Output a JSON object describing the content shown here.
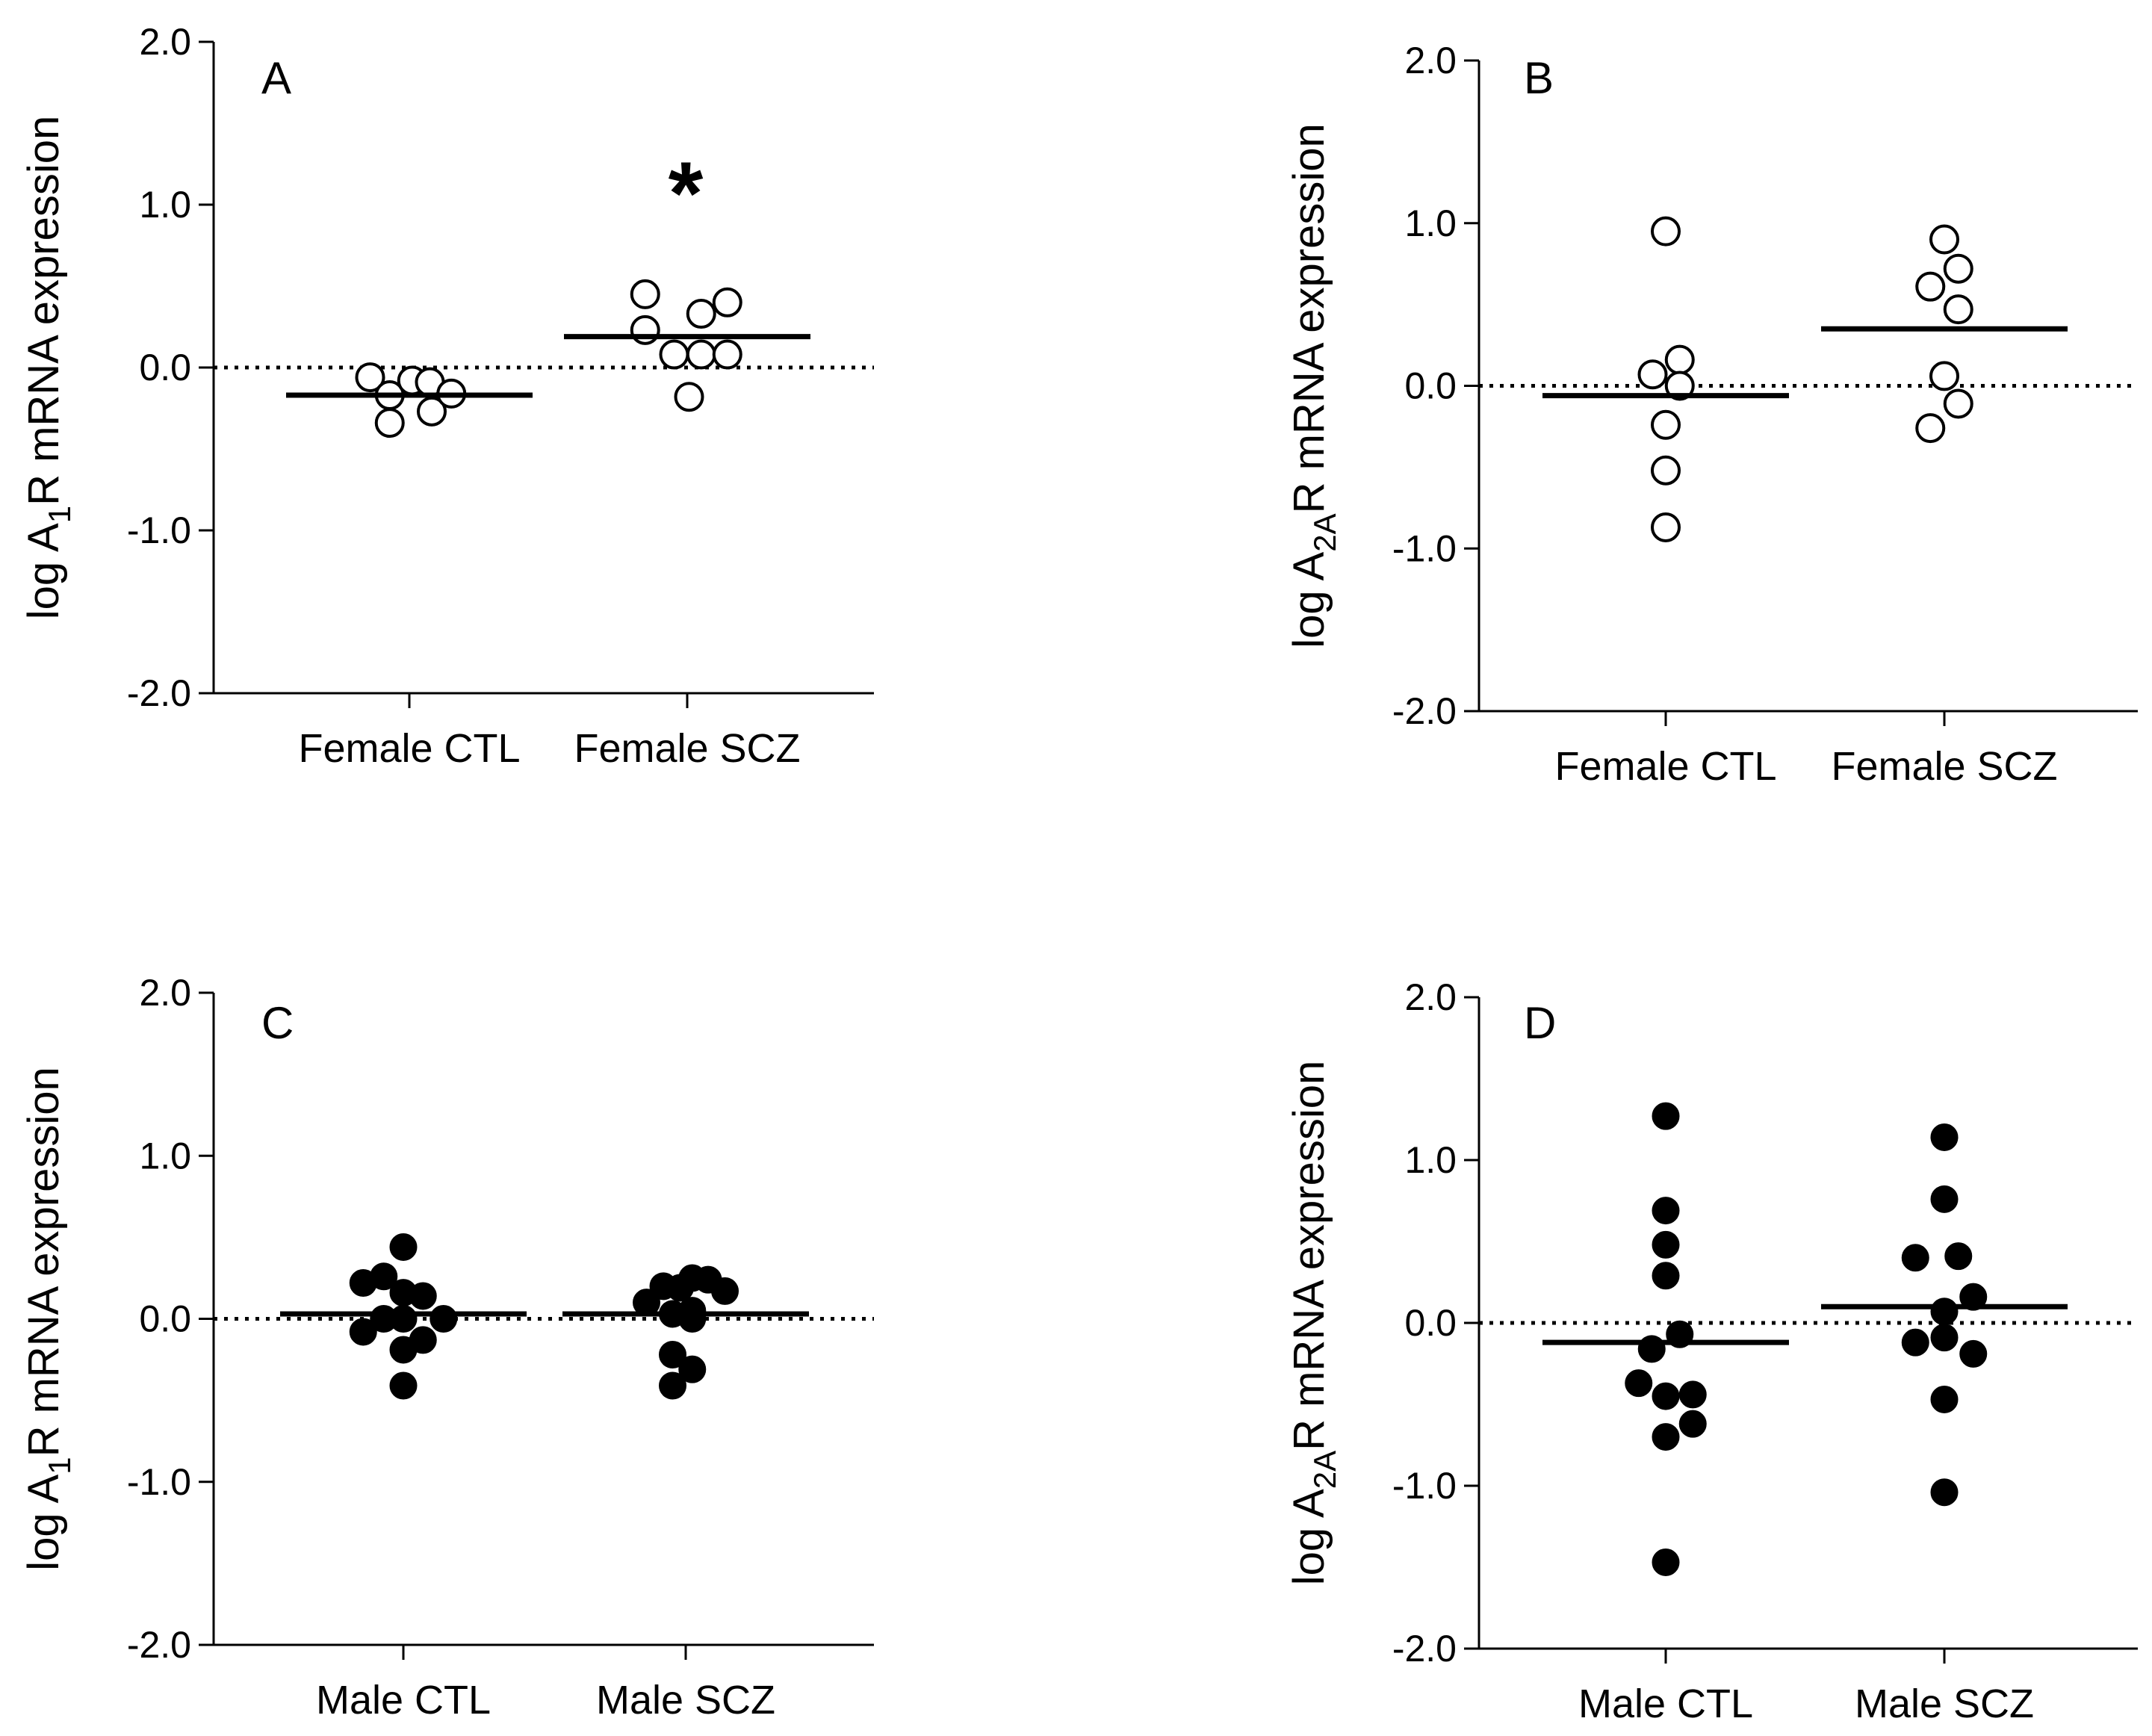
{
  "chart_data": [
    {
      "panel": "A",
      "type": "scatter",
      "ylabel": {
        "prefix": "log A",
        "subscript": "1",
        "suffix": "R mRNA expression"
      },
      "ylim": [
        -2.0,
        2.0
      ],
      "yticks": [
        "-2.0",
        "-1.0",
        "0.0",
        "1.0",
        "2.0"
      ],
      "categories": [
        "Female CTL",
        "Female SCZ"
      ],
      "marker": "open",
      "annotation": "*",
      "series": [
        {
          "name": "Female CTL",
          "points": [
            [
              -0.42,
              -0.06
            ],
            [
              -0.21,
              -0.17
            ],
            [
              -0.21,
              -0.34
            ],
            [
              0.03,
              -0.08
            ],
            [
              0.22,
              -0.09
            ],
            [
              0.24,
              -0.27
            ],
            [
              0.45,
              -0.16
            ]
          ],
          "mean": -0.17
        },
        {
          "name": "Female SCZ",
          "points": [
            [
              -0.45,
              0.45
            ],
            [
              -0.45,
              0.23
            ],
            [
              -0.14,
              0.08
            ],
            [
              0.02,
              -0.18
            ],
            [
              0.15,
              0.33
            ],
            [
              0.15,
              0.08
            ],
            [
              0.43,
              0.4
            ],
            [
              0.43,
              0.08
            ]
          ],
          "mean": 0.19
        }
      ]
    },
    {
      "panel": "B",
      "type": "scatter",
      "ylabel": {
        "prefix": "log A",
        "subscript": "2A",
        "suffix": "R mRNA expression"
      },
      "ylim": [
        -2.0,
        2.0
      ],
      "yticks": [
        "-2.0",
        "-1.0",
        "0.0",
        "1.0",
        "2.0"
      ],
      "categories": [
        "Female CTL",
        "Female SCZ"
      ],
      "marker": "open",
      "series": [
        {
          "name": "Female CTL",
          "points": [
            [
              0.0,
              0.95
            ],
            [
              -0.14,
              0.07
            ],
            [
              0.15,
              0.16
            ],
            [
              0.15,
              0.0
            ],
            [
              0.0,
              -0.24
            ],
            [
              0.0,
              -0.52
            ],
            [
              0.0,
              -0.87
            ]
          ],
          "mean": -0.06
        },
        {
          "name": "Female SCZ",
          "points": [
            [
              0.0,
              0.9
            ],
            [
              0.15,
              0.72
            ],
            [
              -0.15,
              0.61
            ],
            [
              0.15,
              0.47
            ],
            [
              0.0,
              0.06
            ],
            [
              0.15,
              -0.11
            ],
            [
              -0.15,
              -0.26
            ]
          ],
          "mean": 0.35
        }
      ]
    },
    {
      "panel": "C",
      "type": "scatter",
      "ylabel": {
        "prefix": "log A",
        "subscript": "1",
        "suffix": "R mRNA expression"
      },
      "ylim": [
        -2.0,
        2.0
      ],
      "yticks": [
        "-2.0",
        "-1.0",
        "0.0",
        "1.0",
        "2.0"
      ],
      "categories": [
        "Male CTL",
        "Male SCZ"
      ],
      "marker": "filled",
      "series": [
        {
          "name": "Male CTL",
          "points": [
            [
              0.0,
              0.44
            ],
            [
              -0.21,
              0.26
            ],
            [
              -0.43,
              0.22
            ],
            [
              0.0,
              0.16
            ],
            [
              0.21,
              0.14
            ],
            [
              -0.21,
              0.0
            ],
            [
              0.0,
              0.0
            ],
            [
              0.43,
              0.0
            ],
            [
              -0.43,
              -0.08
            ],
            [
              0.21,
              -0.13
            ],
            [
              0.0,
              -0.19
            ],
            [
              0.0,
              -0.41
            ]
          ],
          "mean": 0.03
        },
        {
          "name": "Male SCZ",
          "points": [
            [
              0.07,
              0.25
            ],
            [
              0.24,
              0.24
            ],
            [
              -0.24,
              0.2
            ],
            [
              -0.06,
              0.19
            ],
            [
              0.42,
              0.17
            ],
            [
              -0.42,
              0.1
            ],
            [
              0.07,
              0.05
            ],
            [
              -0.14,
              0.03
            ],
            [
              0.07,
              0.0
            ],
            [
              -0.14,
              -0.22
            ],
            [
              0.07,
              -0.31
            ],
            [
              -0.14,
              -0.41
            ]
          ],
          "mean": 0.03
        }
      ]
    },
    {
      "panel": "D",
      "type": "scatter",
      "ylabel": {
        "prefix": "log A",
        "subscript": "2A",
        "suffix": "R mRNA expression"
      },
      "ylim": [
        -2.0,
        2.0
      ],
      "yticks": [
        "-2.0",
        "-1.0",
        "0.0",
        "1.0",
        "2.0"
      ],
      "categories": [
        "Male CTL",
        "Male SCZ"
      ],
      "marker": "filled",
      "series": [
        {
          "name": "Male CTL",
          "points": [
            [
              0.0,
              1.27
            ],
            [
              0.0,
              0.69
            ],
            [
              0.0,
              0.48
            ],
            [
              0.0,
              0.29
            ],
            [
              -0.15,
              -0.16
            ],
            [
              0.15,
              -0.07
            ],
            [
              -0.29,
              -0.37
            ],
            [
              0.0,
              -0.45
            ],
            [
              0.29,
              -0.44
            ],
            [
              0.0,
              -0.7
            ],
            [
              0.29,
              -0.62
            ],
            [
              0.0,
              -1.47
            ]
          ],
          "mean": -0.12
        },
        {
          "name": "Male SCZ",
          "points": [
            [
              0.0,
              1.14
            ],
            [
              0.0,
              0.76
            ],
            [
              -0.31,
              0.4
            ],
            [
              0.15,
              0.41
            ],
            [
              0.0,
              0.07
            ],
            [
              0.31,
              0.16
            ],
            [
              -0.31,
              -0.12
            ],
            [
              0.0,
              -0.09
            ],
            [
              0.31,
              -0.19
            ],
            [
              0.0,
              -0.47
            ],
            [
              0.0,
              -1.04
            ]
          ],
          "mean": 0.1
        }
      ]
    }
  ]
}
